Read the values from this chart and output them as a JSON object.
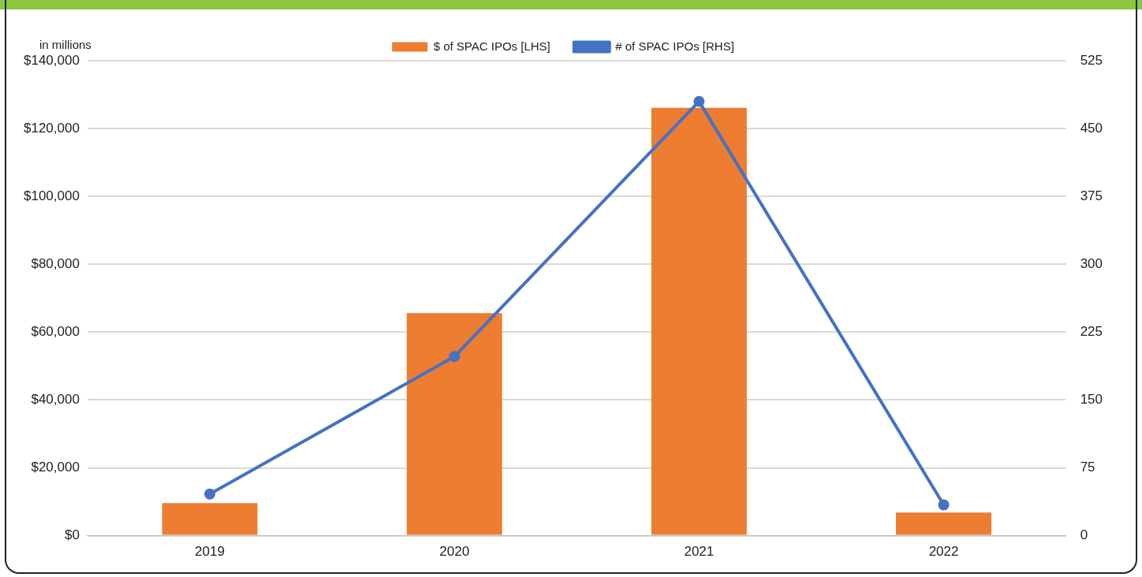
{
  "chart_data": {
    "type": "bar",
    "categories": [
      "2019",
      "2020",
      "2021",
      "2022"
    ],
    "series": [
      {
        "name": "$ of SPAC IPOs [LHS]",
        "color": "#ed7d31",
        "values": [
          9600,
          65600,
          126100,
          6800
        ]
      },
      {
        "name": "# of SPAC IPOs [RHS]",
        "type": "line",
        "axis": "y2",
        "color": "#4472c4",
        "values": [
          46,
          198,
          480,
          34
        ],
        "marker": "circle"
      }
    ],
    "ylim": [
      0,
      140000
    ],
    "yticks": [
      {
        "value": 0,
        "label": "$0"
      },
      {
        "value": 20000,
        "label": "$20,000"
      },
      {
        "value": 40000,
        "label": "$40,000"
      },
      {
        "value": 60000,
        "label": "$60,000"
      },
      {
        "value": 80000,
        "label": "$80,000"
      },
      {
        "value": 100000,
        "label": "$100,000"
      },
      {
        "value": 120000,
        "label": "$120,000"
      },
      {
        "value": 140000,
        "label": "$140,000"
      }
    ],
    "y2lim": [
      0,
      525
    ],
    "y2ticks": [
      0,
      75,
      150,
      225,
      300,
      375,
      450,
      525
    ],
    "annotations": [
      "in millions"
    ],
    "grid": "y",
    "legend": "top"
  }
}
